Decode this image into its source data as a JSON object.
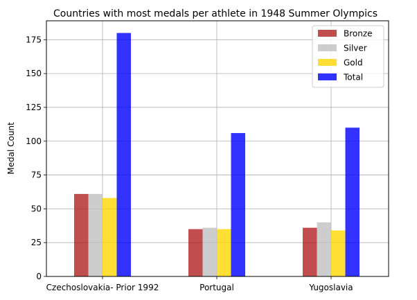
{
  "chart_data": {
    "type": "bar",
    "title": "Countries with most medals per athlete in 1948 Summer Olympics",
    "xlabel": "",
    "ylabel": "Medal Count",
    "categories": [
      "Czechoslovakia- Prior 1992",
      "Portugal",
      "Yugoslavia"
    ],
    "series": [
      {
        "name": "Bronze",
        "color": "#b22222",
        "values": [
          61,
          35,
          36
        ]
      },
      {
        "name": "Silver",
        "color": "#c0c0c0",
        "values": [
          61,
          36,
          40
        ]
      },
      {
        "name": "Gold",
        "color": "#ffd700",
        "values": [
          58,
          35,
          34
        ]
      },
      {
        "name": "Total",
        "color": "#0000ff",
        "values": [
          180,
          106,
          110
        ]
      }
    ],
    "ylim": [
      0,
      189
    ],
    "yticks": [
      0,
      25,
      50,
      75,
      100,
      125,
      150,
      175
    ],
    "grid": true,
    "legend": "top-right"
  }
}
